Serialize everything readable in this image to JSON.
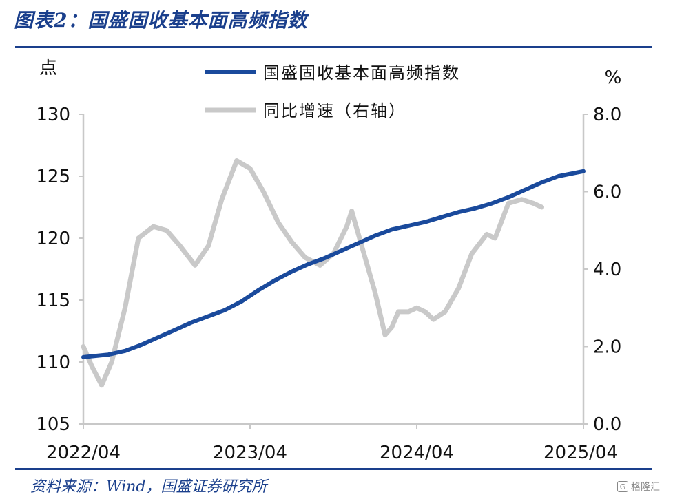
{
  "figure": {
    "title": "图表2：国盛固收基本面高频指数",
    "source": "资料来源：Wind，国盛证券研究所",
    "watermark": "格隆汇"
  },
  "colors": {
    "index": "#1a4a9c",
    "yoy": "#c9c9c9",
    "accent": "#1a3f8c"
  },
  "chart_data": {
    "type": "line",
    "title": "国盛固收基本面高频指数",
    "xlabel": "",
    "ylabel_left": "点",
    "ylabel_right": "%",
    "x_ticks": [
      "2022/04",
      "2023/04",
      "2024/04",
      "2025/04"
    ],
    "x_range": [
      2022.25,
      2025.25
    ],
    "y_left": {
      "range": [
        105,
        130
      ],
      "ticks": [
        "105",
        "110",
        "115",
        "120",
        "125",
        "130"
      ]
    },
    "y_right": {
      "range": [
        0,
        8
      ],
      "ticks": [
        "0.0",
        "2.0",
        "4.0",
        "6.0",
        "8.0"
      ]
    },
    "legend_position": "top-center",
    "series": [
      {
        "name": "国盛固收基本面高频指数",
        "axis": "left",
        "points": [
          [
            2022.25,
            110.4
          ],
          [
            2022.4,
            110.6
          ],
          [
            2022.5,
            110.9
          ],
          [
            2022.6,
            111.4
          ],
          [
            2022.7,
            112.0
          ],
          [
            2022.8,
            112.6
          ],
          [
            2022.9,
            113.2
          ],
          [
            2023.0,
            113.7
          ],
          [
            2023.1,
            114.2
          ],
          [
            2023.2,
            114.9
          ],
          [
            2023.3,
            115.8
          ],
          [
            2023.4,
            116.6
          ],
          [
            2023.5,
            117.3
          ],
          [
            2023.6,
            117.9
          ],
          [
            2023.7,
            118.4
          ],
          [
            2023.8,
            119.0
          ],
          [
            2023.9,
            119.6
          ],
          [
            2024.0,
            120.2
          ],
          [
            2024.1,
            120.7
          ],
          [
            2024.2,
            121.0
          ],
          [
            2024.3,
            121.3
          ],
          [
            2024.4,
            121.7
          ],
          [
            2024.5,
            122.1
          ],
          [
            2024.6,
            122.4
          ],
          [
            2024.7,
            122.8
          ],
          [
            2024.8,
            123.3
          ],
          [
            2024.9,
            123.9
          ],
          [
            2025.0,
            124.5
          ],
          [
            2025.1,
            125.0
          ],
          [
            2025.25,
            125.4
          ]
        ]
      },
      {
        "name": "同比增速（右轴）",
        "axis": "right",
        "points": [
          [
            2022.25,
            2.0
          ],
          [
            2022.3,
            1.5
          ],
          [
            2022.36,
            1.0
          ],
          [
            2022.42,
            1.6
          ],
          [
            2022.5,
            3.0
          ],
          [
            2022.58,
            4.8
          ],
          [
            2022.67,
            5.1
          ],
          [
            2022.75,
            5.0
          ],
          [
            2022.83,
            4.6
          ],
          [
            2022.92,
            4.1
          ],
          [
            2023.0,
            4.6
          ],
          [
            2023.08,
            5.8
          ],
          [
            2023.17,
            6.8
          ],
          [
            2023.25,
            6.6
          ],
          [
            2023.33,
            6.0
          ],
          [
            2023.42,
            5.2
          ],
          [
            2023.5,
            4.7
          ],
          [
            2023.58,
            4.3
          ],
          [
            2023.67,
            4.1
          ],
          [
            2023.75,
            4.4
          ],
          [
            2023.83,
            5.1
          ],
          [
            2023.86,
            5.5
          ],
          [
            2023.92,
            4.6
          ],
          [
            2024.0,
            3.4
          ],
          [
            2024.06,
            2.3
          ],
          [
            2024.1,
            2.5
          ],
          [
            2024.14,
            2.9
          ],
          [
            2024.2,
            2.9
          ],
          [
            2024.25,
            3.0
          ],
          [
            2024.3,
            2.9
          ],
          [
            2024.35,
            2.7
          ],
          [
            2024.42,
            2.9
          ],
          [
            2024.5,
            3.5
          ],
          [
            2024.58,
            4.4
          ],
          [
            2024.67,
            4.9
          ],
          [
            2024.72,
            4.8
          ],
          [
            2024.8,
            5.7
          ],
          [
            2024.88,
            5.8
          ],
          [
            2024.95,
            5.7
          ],
          [
            2025.0,
            5.6
          ]
        ]
      }
    ]
  }
}
